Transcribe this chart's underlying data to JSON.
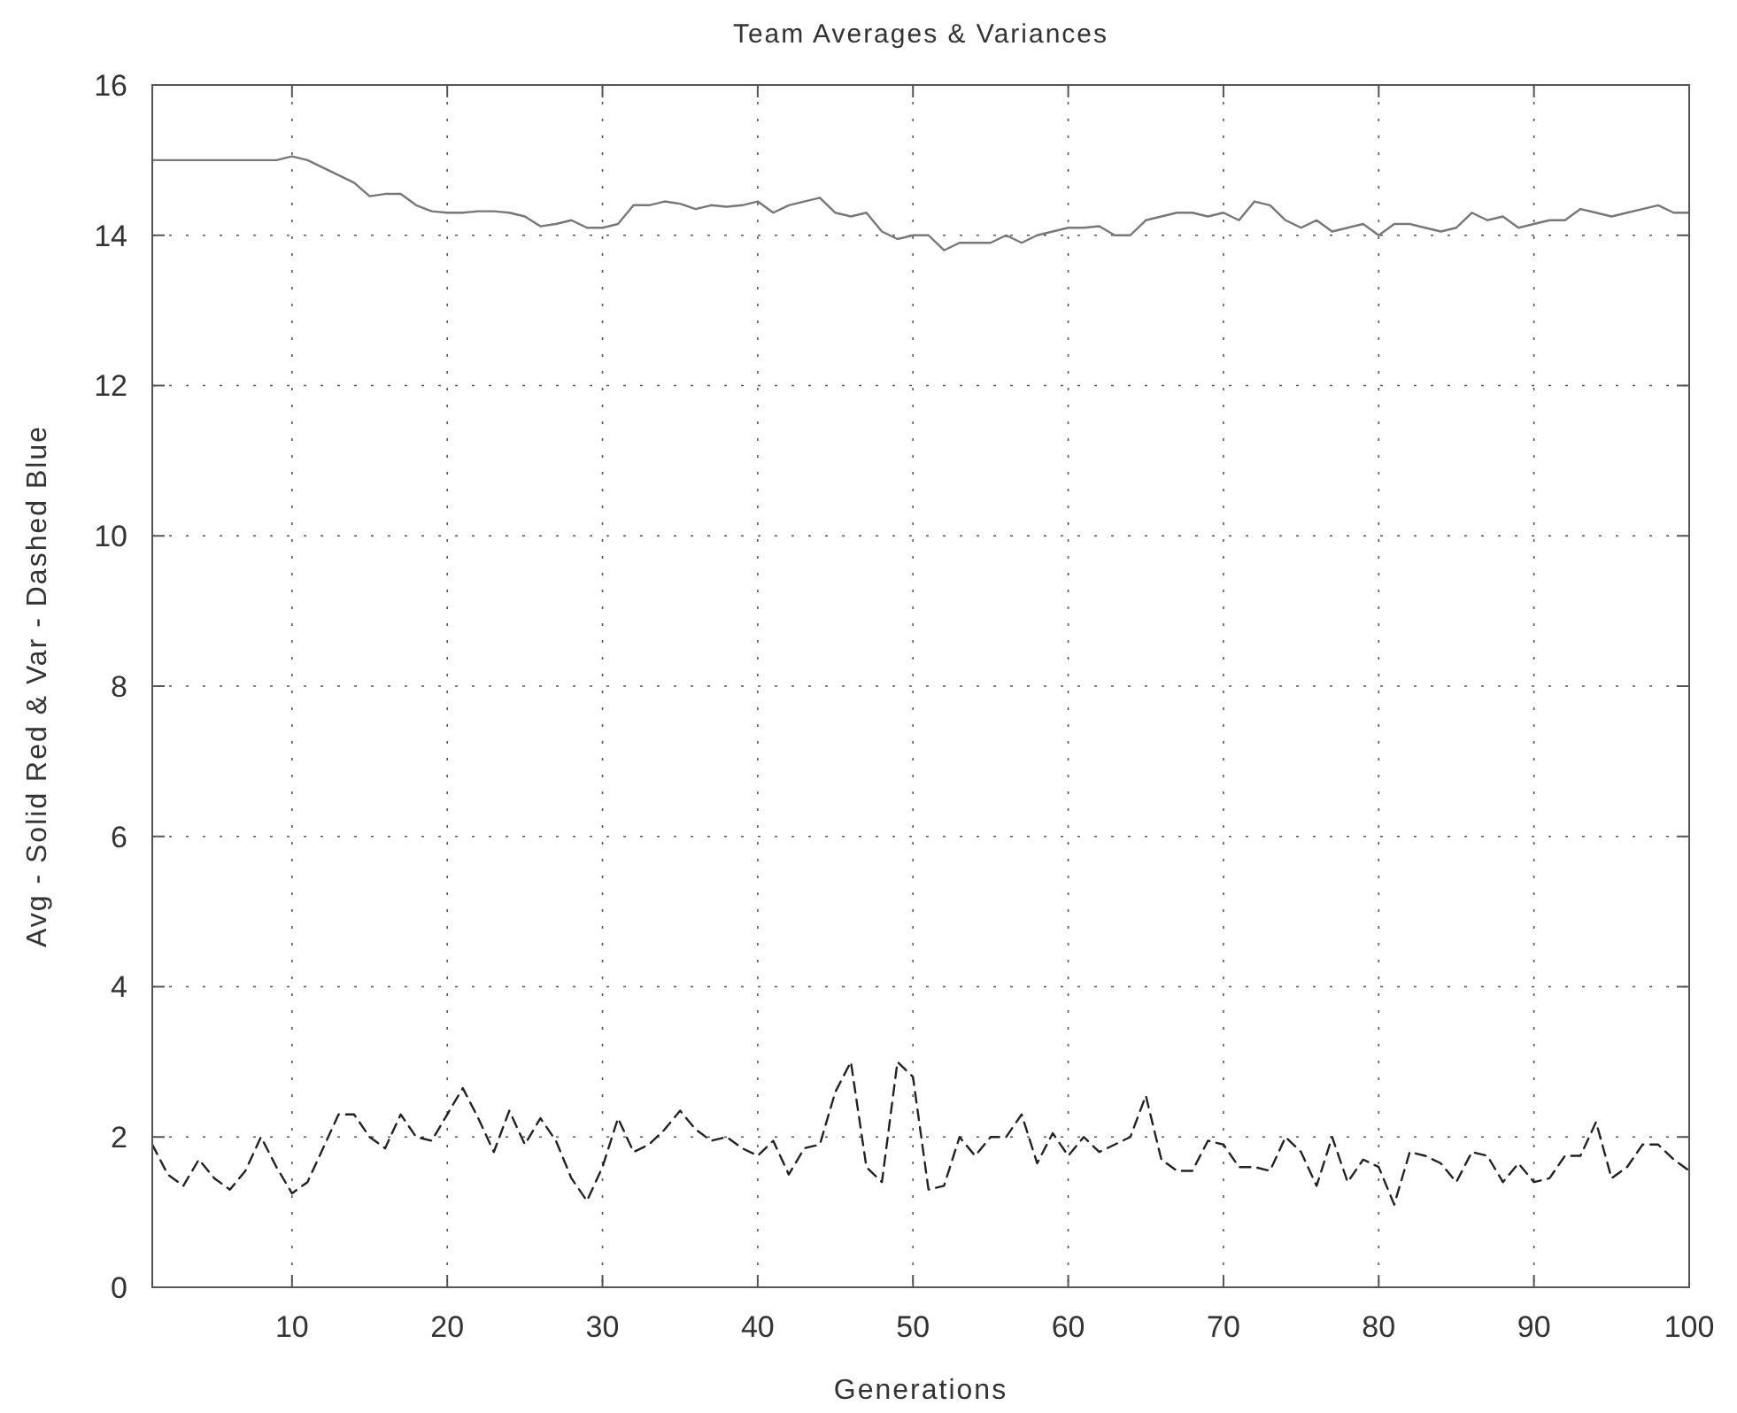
{
  "chart_data": {
    "type": "line",
    "title": "Team Averages & Variances",
    "xlabel": "Generations",
    "ylabel": "Avg - Solid Red & Var - Dashed Blue",
    "x": [
      1,
      2,
      3,
      4,
      5,
      6,
      7,
      8,
      9,
      10,
      11,
      12,
      13,
      14,
      15,
      16,
      17,
      18,
      19,
      20,
      21,
      22,
      23,
      24,
      25,
      26,
      27,
      28,
      29,
      30,
      31,
      32,
      33,
      34,
      35,
      36,
      37,
      38,
      39,
      40,
      41,
      42,
      43,
      44,
      45,
      46,
      47,
      48,
      49,
      50,
      51,
      52,
      53,
      54,
      55,
      56,
      57,
      58,
      59,
      60,
      61,
      62,
      63,
      64,
      65,
      66,
      67,
      68,
      69,
      70,
      71,
      72,
      73,
      74,
      75,
      76,
      77,
      78,
      79,
      80,
      81,
      82,
      83,
      84,
      85,
      86,
      87,
      88,
      89,
      90,
      91,
      92,
      93,
      94,
      95,
      96,
      97,
      98,
      99,
      100
    ],
    "series": [
      {
        "color": "#777777",
        "line_style": "solid",
        "values": [
          15.0,
          15.0,
          15.0,
          15.0,
          15.0,
          15.0,
          15.0,
          15.0,
          15.0,
          15.05,
          15.0,
          14.9,
          14.8,
          14.7,
          14.52,
          14.55,
          14.55,
          14.4,
          14.32,
          14.3,
          14.3,
          14.32,
          14.32,
          14.3,
          14.25,
          14.12,
          14.15,
          14.2,
          14.1,
          14.1,
          14.15,
          14.4,
          14.4,
          14.45,
          14.42,
          14.35,
          14.4,
          14.38,
          14.4,
          14.45,
          14.3,
          14.4,
          14.45,
          14.5,
          14.3,
          14.25,
          14.3,
          14.05,
          13.95,
          14.0,
          14.0,
          13.8,
          13.9,
          13.9,
          13.9,
          14.0,
          13.9,
          14.0,
          14.05,
          14.1,
          14.1,
          14.12,
          14.0,
          14.0,
          14.2,
          14.25,
          14.3,
          14.3,
          14.25,
          14.3,
          14.2,
          14.45,
          14.4,
          14.2,
          14.1,
          14.2,
          14.05,
          14.1,
          14.15,
          14.0,
          14.15,
          14.15,
          14.1,
          14.05,
          14.1,
          14.3,
          14.2,
          14.25,
          14.1,
          14.15,
          14.2,
          14.2,
          14.35,
          14.3,
          14.25,
          14.3,
          14.35,
          14.4,
          14.3,
          14.3
        ]
      },
      {
        "color": "#222222",
        "line_style": "dashed",
        "values": [
          1.9,
          1.5,
          1.35,
          1.7,
          1.45,
          1.3,
          1.55,
          2.0,
          1.6,
          1.25,
          1.4,
          1.85,
          2.3,
          2.3,
          2.0,
          1.85,
          2.3,
          2.0,
          1.95,
          2.3,
          2.65,
          2.25,
          1.8,
          2.35,
          1.9,
          2.25,
          1.95,
          1.45,
          1.15,
          1.6,
          2.25,
          1.8,
          1.9,
          2.1,
          2.35,
          2.1,
          1.95,
          2.0,
          1.85,
          1.75,
          1.95,
          1.5,
          1.85,
          1.9,
          2.6,
          3.0,
          1.6,
          1.4,
          3.0,
          2.8,
          1.3,
          1.35,
          2.0,
          1.75,
          2.0,
          2.0,
          2.3,
          1.65,
          2.05,
          1.75,
          2.0,
          1.8,
          1.9,
          2.0,
          2.55,
          1.7,
          1.55,
          1.55,
          1.95,
          1.9,
          1.6,
          1.6,
          1.55,
          2.0,
          1.8,
          1.35,
          2.0,
          1.4,
          1.7,
          1.6,
          1.1,
          1.8,
          1.75,
          1.65,
          1.4,
          1.8,
          1.75,
          1.4,
          1.65,
          1.4,
          1.45,
          1.75,
          1.75,
          2.2,
          1.45,
          1.6,
          1.9,
          1.9,
          1.7,
          1.55
        ]
      }
    ],
    "xlim": [
      1,
      100
    ],
    "xticks": [
      10,
      20,
      30,
      40,
      50,
      60,
      70,
      80,
      90,
      100
    ],
    "ylim": [
      0,
      16
    ],
    "yticks": [
      0,
      2,
      4,
      6,
      8,
      10,
      12,
      14,
      16
    ],
    "grid": true,
    "marker": "none"
  }
}
